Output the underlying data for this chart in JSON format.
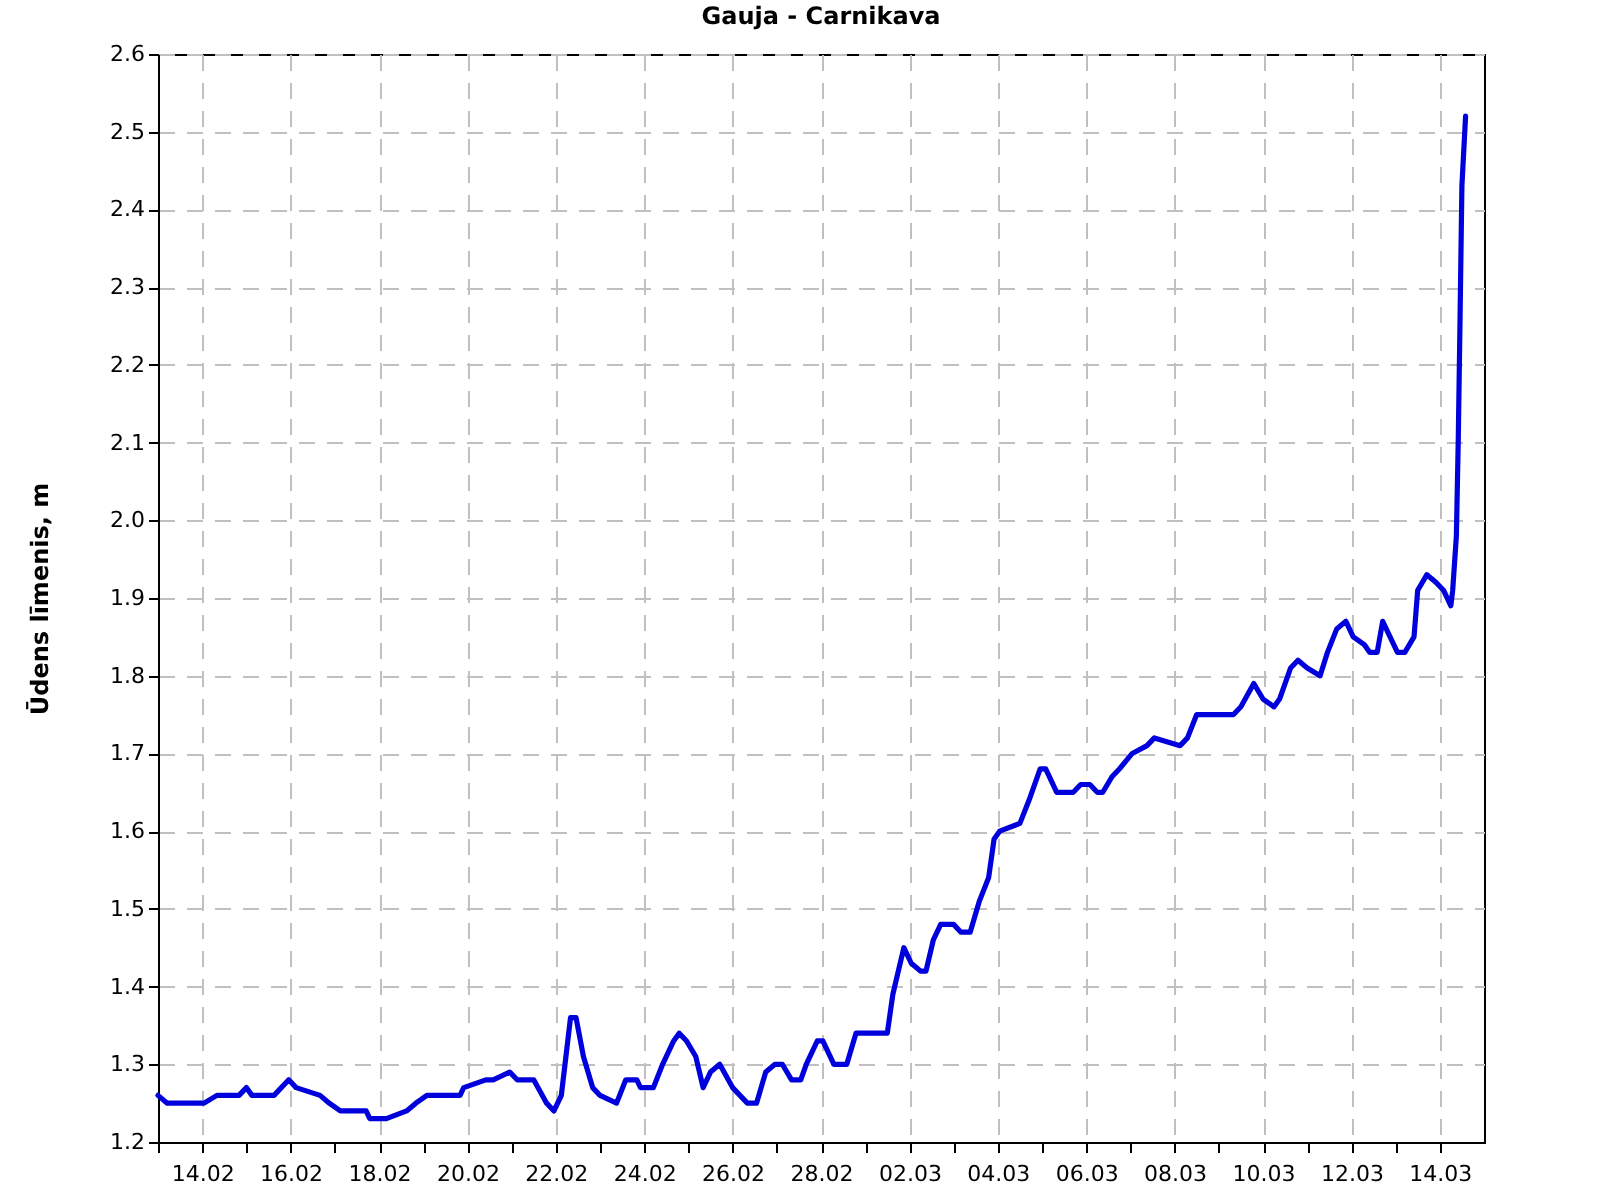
{
  "chart_data": {
    "type": "line",
    "title": "Gauja - Carnikava",
    "ylabel": "Ūdens līmenis, m",
    "xlim": [
      "--02-13T00:00",
      "--03-15T00:00"
    ],
    "xticks": [
      {
        "value": "--02-13",
        "label": null
      },
      {
        "value": "--02-14",
        "label": "14.02"
      },
      {
        "value": "--02-15",
        "label": null
      },
      {
        "value": "--02-16",
        "label": "16.02"
      },
      {
        "value": "--02-17",
        "label": null
      },
      {
        "value": "--02-18",
        "label": "18.02"
      },
      {
        "value": "--02-19",
        "label": null
      },
      {
        "value": "--02-20",
        "label": "20.02"
      },
      {
        "value": "--02-21",
        "label": null
      },
      {
        "value": "--02-22",
        "label": "22.02"
      },
      {
        "value": "--02-23",
        "label": null
      },
      {
        "value": "--02-24",
        "label": "24.02"
      },
      {
        "value": "--02-25",
        "label": null
      },
      {
        "value": "--02-26",
        "label": "26.02"
      },
      {
        "value": "--02-27",
        "label": null
      },
      {
        "value": "--02-28",
        "label": "28.02"
      },
      {
        "value": "--03-01",
        "label": null
      },
      {
        "value": "--03-02",
        "label": "02.03"
      },
      {
        "value": "--03-03",
        "label": null
      },
      {
        "value": "--03-04",
        "label": "04.03"
      },
      {
        "value": "--03-05",
        "label": null
      },
      {
        "value": "--03-06",
        "label": "06.03"
      },
      {
        "value": "--03-07",
        "label": null
      },
      {
        "value": "--03-08",
        "label": "08.03"
      },
      {
        "value": "--03-09",
        "label": null
      },
      {
        "value": "--03-10",
        "label": "10.03"
      },
      {
        "value": "--03-11",
        "label": null
      },
      {
        "value": "--03-12",
        "label": "12.03"
      },
      {
        "value": "--03-13",
        "label": null
      },
      {
        "value": "--03-14",
        "label": "14.03"
      }
    ],
    "ylim": [
      1.2,
      2.6
    ],
    "yticks": [
      1.2,
      1.3,
      1.4,
      1.5,
      1.6,
      1.7,
      1.8,
      1.9,
      {
        "value": 2,
        "label": "2.0"
      },
      2.1,
      2.2,
      2.3,
      2.4,
      2.5,
      2.6
    ],
    "grid": true,
    "x": [
      "--02-13T00:00",
      "--02-13T05:00",
      "--02-13T17:00",
      "--02-14T01:00",
      "--02-14T08:00",
      "--02-14T20:00",
      "--02-15T00:00",
      "--02-15T03:00",
      "--02-15T15:00",
      "--02-15T23:00",
      "--02-16T03:00",
      "--02-16T16:00",
      "--02-16T21:00",
      "--02-17T03:00",
      "--02-17T10:00",
      "--02-17T17:00",
      "--02-17T19:00",
      "--02-18T04:00",
      "--02-18T15:00",
      "--02-18T20:00",
      "--02-19T02:00",
      "--02-19T20:00",
      "--02-19T22:00",
      "--02-20T10:00",
      "--02-20T14:00",
      "--02-20T23:00",
      "--02-21T03:00",
      "--02-21T10:00",
      "--02-21T12:00",
      "--02-21T19:00",
      "--02-21T23:00",
      "--02-22T03:00",
      "--02-22T08:00",
      "--02-22T11:00",
      "--02-22T15:00",
      "--02-22T20:00",
      "--02-23T00:00",
      "--02-23T09:00",
      "--02-23T14:00",
      "--02-23T20:00",
      "--02-23T22:00",
      "--02-24T05:00",
      "--02-24T10:00",
      "--02-24T16:00",
      "--02-24T19:00",
      "--02-24T23:00",
      "--02-25T04:00",
      "--02-25T08:00",
      "--02-25T12:00",
      "--02-25T17:00",
      "--02-26T00:00",
      "--02-26T04:00",
      "--02-26T08:00",
      "--02-26T13:00",
      "--02-26T18:00",
      "--02-26T23:00",
      "--02-27T03:00",
      "--02-27T08:00",
      "--02-27T13:00",
      "--02-27T16:00",
      "--02-27T22:00",
      "--02-28T01:00",
      "--02-28T07:00",
      "--02-28T14:00",
      "--02-28T19:00",
      "--02-28T23:00",
      "--03-01T12:00",
      "--03-01T15:00",
      "--03-01T21:00",
      "--03-02T01:00",
      "--03-02T06:00",
      "--03-02T09:00",
      "--03-02T13:00",
      "--03-02T17:00",
      "--03-03T00:00",
      "--03-03T04:00",
      "--03-03T09:00",
      "--03-03T14:00",
      "--03-03T19:00",
      "--03-03T22:00",
      "--03-04T01:00",
      "--03-04T12:00",
      "--03-04T17:00",
      "--03-04T23:00",
      "--03-05T02:00",
      "--03-05T08:00",
      "--03-05T17:00",
      "--03-05T21:00",
      "--03-06T02:00",
      "--03-06T06:00",
      "--03-06T09:00",
      "--03-06T14:00",
      "--03-06T18:00",
      "--03-07T01:00",
      "--03-07T09:00",
      "--03-07T13:00",
      "--03-08T03:00",
      "--03-08T07:00",
      "--03-08T12:00",
      "--03-08T16:00",
      "--03-08T21:00",
      "--03-09T08:00",
      "--03-09T12:00",
      "--03-09T19:00",
      "--03-10T00:00",
      "--03-10T06:00",
      "--03-10T09:00",
      "--03-10T15:00",
      "--03-10T19:00",
      "--03-11T00:00",
      "--03-11T07:00",
      "--03-11T11:00",
      "--03-11T16:00",
      "--03-11T21:00",
      "--03-12T01:00",
      "--03-12T07:00",
      "--03-12T10:00",
      "--03-12T14:00",
      "--03-12T17:00",
      "--03-12T21:00",
      "--03-13T01:00",
      "--03-13T05:00",
      "--03-13T10:00",
      "--03-13T12:00",
      "--03-13T17:00",
      "--03-13T22:00",
      "--03-14T02:00",
      "--03-14T06:00",
      "--03-14T07:00",
      "--03-14T09:00",
      "--03-14T10:00",
      "--03-14T11:00",
      "--03-14T12:00",
      "--03-14T14:00"
    ],
    "series": [
      {
        "color": "#0000dd",
        "values": [
          1.26,
          1.25,
          1.25,
          1.25,
          1.26,
          1.26,
          1.27,
          1.26,
          1.26,
          1.28,
          1.27,
          1.26,
          1.25,
          1.24,
          1.24,
          1.24,
          1.23,
          1.23,
          1.24,
          1.25,
          1.26,
          1.26,
          1.27,
          1.28,
          1.28,
          1.29,
          1.28,
          1.28,
          1.28,
          1.25,
          1.24,
          1.26,
          1.36,
          1.36,
          1.31,
          1.27,
          1.26,
          1.25,
          1.28,
          1.28,
          1.27,
          1.27,
          1.3,
          1.33,
          1.34,
          1.33,
          1.31,
          1.27,
          1.29,
          1.3,
          1.27,
          1.26,
          1.25,
          1.25,
          1.29,
          1.3,
          1.3,
          1.28,
          1.28,
          1.3,
          1.33,
          1.33,
          1.3,
          1.3,
          1.34,
          1.34,
          1.34,
          1.39,
          1.45,
          1.43,
          1.42,
          1.42,
          1.46,
          1.48,
          1.48,
          1.47,
          1.47,
          1.51,
          1.54,
          1.59,
          1.6,
          1.61,
          1.64,
          1.68,
          1.68,
          1.65,
          1.65,
          1.66,
          1.66,
          1.65,
          1.65,
          1.67,
          1.68,
          1.7,
          1.71,
          1.72,
          1.71,
          1.72,
          1.75,
          1.75,
          1.75,
          1.75,
          1.76,
          1.79,
          1.77,
          1.76,
          1.77,
          1.81,
          1.82,
          1.81,
          1.8,
          1.83,
          1.86,
          1.87,
          1.85,
          1.84,
          1.83,
          1.83,
          1.87,
          1.85,
          1.83,
          1.83,
          1.85,
          1.91,
          1.93,
          1.92,
          1.91,
          1.89,
          1.91,
          1.98,
          2.1,
          2.26,
          2.43,
          2.52
        ]
      }
    ]
  }
}
